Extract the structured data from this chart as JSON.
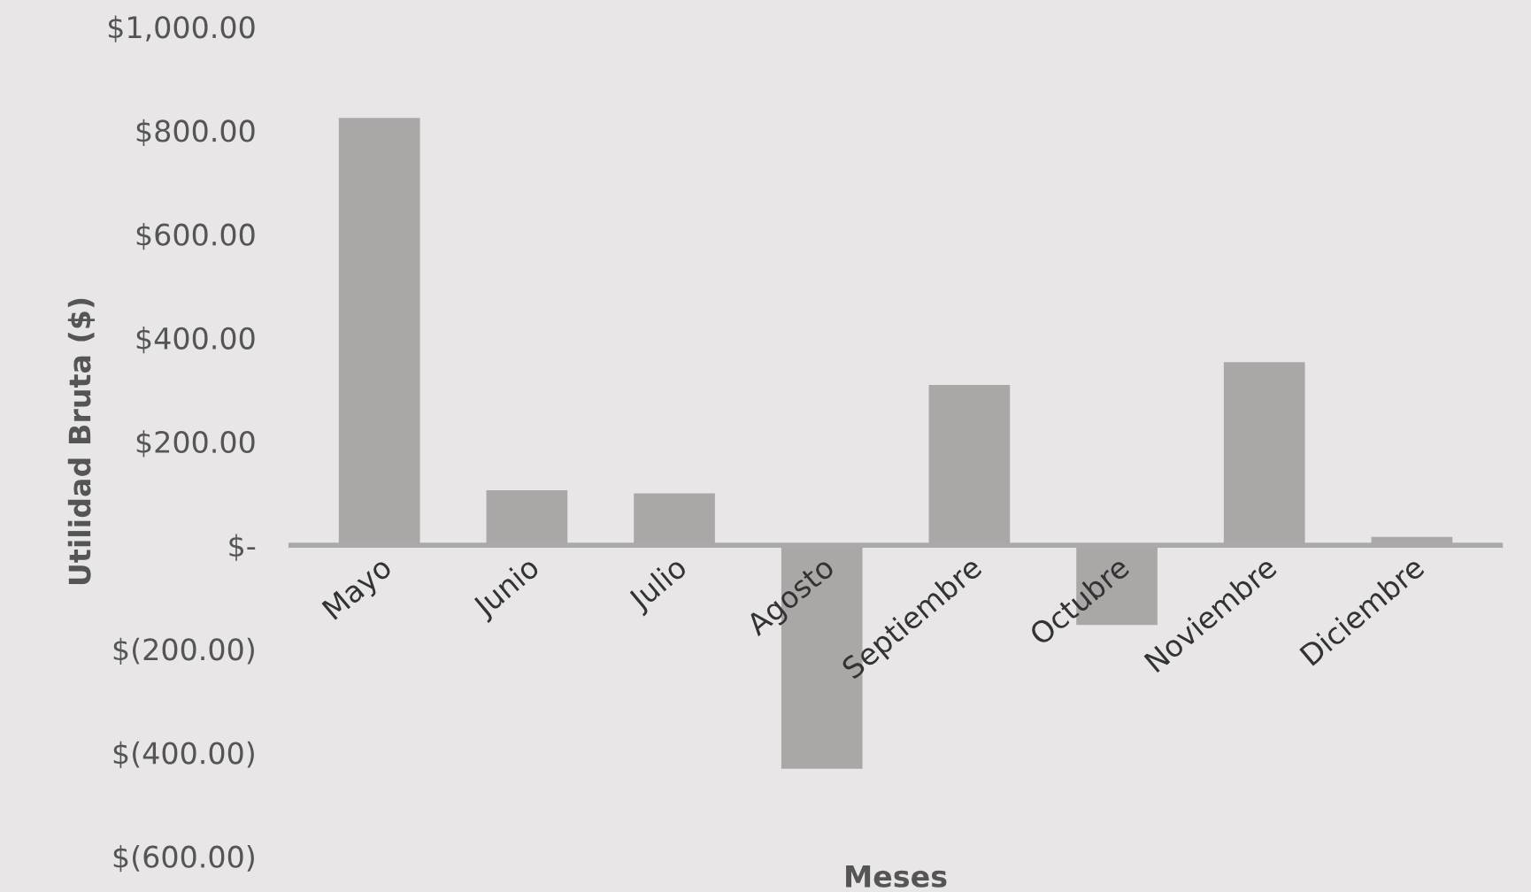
{
  "chart_data": {
    "type": "bar",
    "xlabel": "Meses",
    "ylabel": "Utilidad Bruta ($)",
    "categories": [
      "Mayo",
      "Junio",
      "Julio",
      "Agosto",
      "Septiembre",
      "Octubre",
      "Noviembre",
      "Diciembre"
    ],
    "values": [
      824,
      106,
      100,
      -431,
      309,
      -154,
      353,
      16
    ],
    "color": "#aba7a6",
    "ylim": [
      -600,
      1000
    ],
    "yticks": [
      {
        "value": -600,
        "label": "$(600.00)"
      },
      {
        "value": -400,
        "label": "$(400.00)"
      },
      {
        "value": -200,
        "label": "$(200.00)"
      },
      {
        "value": 0,
        "label": "$-"
      },
      {
        "value": 200,
        "label": "$200.00"
      },
      {
        "value": 400,
        "label": "$400.00"
      },
      {
        "value": 600,
        "label": "$600.00"
      },
      {
        "value": 800,
        "label": "$800.00"
      },
      {
        "value": 1000,
        "label": "$1,000.00"
      }
    ],
    "grid": false,
    "legend": false
  }
}
